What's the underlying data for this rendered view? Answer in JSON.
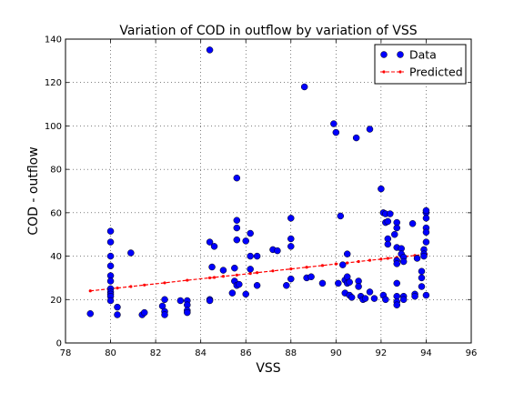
{
  "chart_data": {
    "type": "scatter",
    "title": "Variation of COD in outflow by variation of VSS",
    "xlabel": "VSS",
    "ylabel": "COD - outflow",
    "xlim": [
      78,
      96
    ],
    "ylim": [
      0,
      140
    ],
    "xticks": [
      78,
      80,
      82,
      84,
      86,
      88,
      90,
      92,
      94,
      96
    ],
    "yticks": [
      0,
      20,
      40,
      60,
      80,
      100,
      120,
      140
    ],
    "grid": true,
    "legend": "top-right",
    "colors": {
      "data": "#0000ff",
      "predicted": "#ff0000"
    },
    "series": [
      {
        "name": "Data",
        "style": "markers",
        "points": [
          [
            79.1,
            13.5
          ],
          [
            80.0,
            51.5
          ],
          [
            80.0,
            46.5
          ],
          [
            80.0,
            40.0
          ],
          [
            80.0,
            35.5
          ],
          [
            80.0,
            31.0
          ],
          [
            80.0,
            28.5
          ],
          [
            80.0,
            25.0
          ],
          [
            80.0,
            23.5
          ],
          [
            80.0,
            22.5
          ],
          [
            80.0,
            21.5
          ],
          [
            80.0,
            19.5
          ],
          [
            80.3,
            16.5
          ],
          [
            80.3,
            13.0
          ],
          [
            80.9,
            41.5
          ],
          [
            81.4,
            13.0
          ],
          [
            81.5,
            14.0
          ],
          [
            82.3,
            17.0
          ],
          [
            82.4,
            20.0
          ],
          [
            82.4,
            14.5
          ],
          [
            82.4,
            13.0
          ],
          [
            83.1,
            19.5
          ],
          [
            83.4,
            19.5
          ],
          [
            83.4,
            17.5
          ],
          [
            83.4,
            15.0
          ],
          [
            83.4,
            14.0
          ],
          [
            84.4,
            135.0
          ],
          [
            84.4,
            46.5
          ],
          [
            84.5,
            35.0
          ],
          [
            84.4,
            20.0
          ],
          [
            84.4,
            19.5
          ],
          [
            84.6,
            44.5
          ],
          [
            85.0,
            33.5
          ],
          [
            85.4,
            23.0
          ],
          [
            85.5,
            34.5
          ],
          [
            85.5,
            28.5
          ],
          [
            85.6,
            76.0
          ],
          [
            85.6,
            56.5
          ],
          [
            85.6,
            53.0
          ],
          [
            85.6,
            47.5
          ],
          [
            85.6,
            26.5
          ],
          [
            85.7,
            27.0
          ],
          [
            86.0,
            47.0
          ],
          [
            86.0,
            22.5
          ],
          [
            86.2,
            50.5
          ],
          [
            86.2,
            40.0
          ],
          [
            86.2,
            34.0
          ],
          [
            86.5,
            40.0
          ],
          [
            86.5,
            26.5
          ],
          [
            87.2,
            43.0
          ],
          [
            87.4,
            42.5
          ],
          [
            87.8,
            26.5
          ],
          [
            88.0,
            57.5
          ],
          [
            88.0,
            48.0
          ],
          [
            88.0,
            44.5
          ],
          [
            88.0,
            29.5
          ],
          [
            88.6,
            118.0
          ],
          [
            88.7,
            30.0
          ],
          [
            88.9,
            30.5
          ],
          [
            89.4,
            27.5
          ],
          [
            89.9,
            101.0
          ],
          [
            90.0,
            97.0
          ],
          [
            90.1,
            27.5
          ],
          [
            90.2,
            58.5
          ],
          [
            90.3,
            36.0
          ],
          [
            90.4,
            29.0
          ],
          [
            90.4,
            23.0
          ],
          [
            90.5,
            41.0
          ],
          [
            90.5,
            30.5
          ],
          [
            90.5,
            27.5
          ],
          [
            90.6,
            28.0
          ],
          [
            90.6,
            22.0
          ],
          [
            90.7,
            21.0
          ],
          [
            90.9,
            94.5
          ],
          [
            91.0,
            28.5
          ],
          [
            91.0,
            26.0
          ],
          [
            91.1,
            21.5
          ],
          [
            91.2,
            20.0
          ],
          [
            91.3,
            20.5
          ],
          [
            91.5,
            98.5
          ],
          [
            91.5,
            23.5
          ],
          [
            91.7,
            20.5
          ],
          [
            92.0,
            71.0
          ],
          [
            92.1,
            60.0
          ],
          [
            92.2,
            59.5
          ],
          [
            92.2,
            55.5
          ],
          [
            92.3,
            56.0
          ],
          [
            92.3,
            48.0
          ],
          [
            92.3,
            45.5
          ],
          [
            92.4,
            59.5
          ],
          [
            92.1,
            22.0
          ],
          [
            92.2,
            20.0
          ],
          [
            92.6,
            50.0
          ],
          [
            92.7,
            55.5
          ],
          [
            92.7,
            53.0
          ],
          [
            92.7,
            44.0
          ],
          [
            92.7,
            38.0
          ],
          [
            92.7,
            36.5
          ],
          [
            92.7,
            27.5
          ],
          [
            92.7,
            21.5
          ],
          [
            92.7,
            19.0
          ],
          [
            92.7,
            17.5
          ],
          [
            92.9,
            43.5
          ],
          [
            92.9,
            41.0
          ],
          [
            93.0,
            39.5
          ],
          [
            93.0,
            37.5
          ],
          [
            93.0,
            21.5
          ],
          [
            93.0,
            20.0
          ],
          [
            93.4,
            55.0
          ],
          [
            93.5,
            22.5
          ],
          [
            93.5,
            21.5
          ],
          [
            93.6,
            39.0
          ],
          [
            93.8,
            26.0
          ],
          [
            93.8,
            33.0
          ],
          [
            93.8,
            30.0
          ],
          [
            93.9,
            43.0
          ],
          [
            93.9,
            41.0
          ],
          [
            93.9,
            40.0
          ],
          [
            94.0,
            60.0
          ],
          [
            94.0,
            57.5
          ],
          [
            94.0,
            53.0
          ],
          [
            94.0,
            51.0
          ],
          [
            94.0,
            46.5
          ],
          [
            94.0,
            22.0
          ],
          [
            94.0,
            61.0
          ]
        ]
      },
      {
        "name": "Predicted",
        "style": "line-markers",
        "points": [
          [
            79.1,
            24.0
          ],
          [
            80.0,
            25.0
          ],
          [
            80.3,
            25.3
          ],
          [
            80.9,
            26.0
          ],
          [
            81.5,
            26.7
          ],
          [
            82.4,
            27.7
          ],
          [
            83.4,
            28.9
          ],
          [
            84.4,
            30.0
          ],
          [
            84.6,
            30.2
          ],
          [
            85.0,
            30.7
          ],
          [
            85.6,
            31.3
          ],
          [
            86.2,
            32.0
          ],
          [
            86.5,
            32.4
          ],
          [
            87.2,
            33.2
          ],
          [
            88.0,
            34.1
          ],
          [
            88.7,
            34.9
          ],
          [
            89.4,
            35.7
          ],
          [
            90.0,
            36.4
          ],
          [
            90.5,
            36.9
          ],
          [
            91.0,
            37.5
          ],
          [
            91.5,
            38.1
          ],
          [
            92.0,
            38.6
          ],
          [
            92.3,
            39.0
          ],
          [
            92.7,
            39.4
          ],
          [
            93.0,
            39.8
          ],
          [
            93.5,
            40.3
          ],
          [
            94.0,
            40.9
          ]
        ]
      }
    ]
  }
}
